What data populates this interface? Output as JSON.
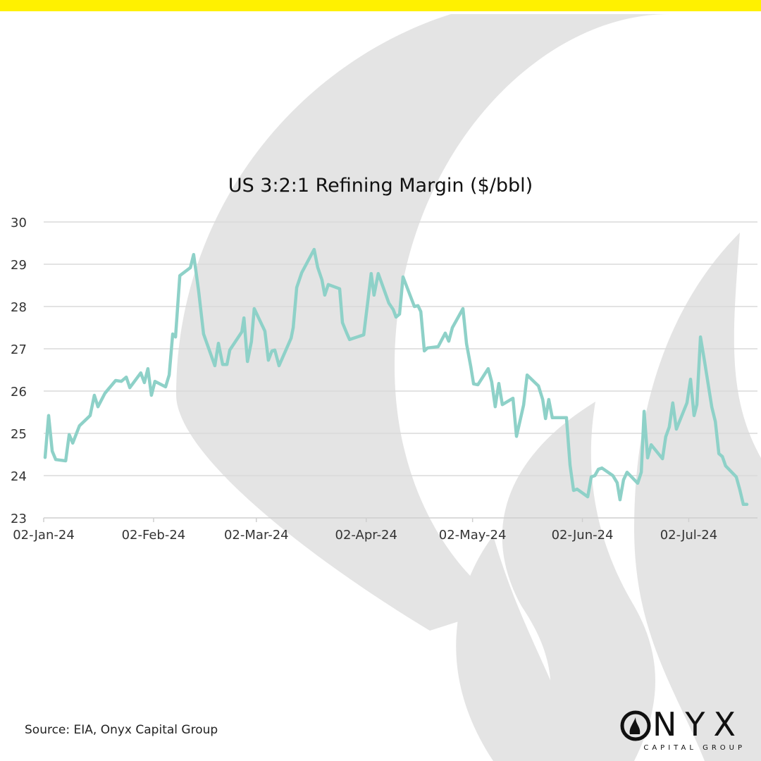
{
  "colors": {
    "accent_bar": "#FFF100",
    "line": "#8ED1C8",
    "watermark": "#E4E4E4",
    "grid": "#DADADA"
  },
  "source": "Source: EIA, Onyx Capital Group",
  "logo": {
    "word": "ONYX",
    "sub": "CAPITAL GROUP"
  },
  "chart_data": {
    "type": "line",
    "title": "US 3:2:1 Refining Margin ($/bbl)",
    "xlabel": "",
    "ylabel": "",
    "x_unit": "days since 02-Jan-24",
    "ylim": [
      23,
      30
    ],
    "yticks": [
      23,
      24,
      25,
      26,
      27,
      28,
      29,
      30
    ],
    "xlim": [
      0,
      199
    ],
    "xticks": [
      {
        "day": 0,
        "label": "02-Jan-24"
      },
      {
        "day": 31,
        "label": "02-Feb-24"
      },
      {
        "day": 60,
        "label": "02-Mar-24"
      },
      {
        "day": 91,
        "label": "02-Apr-24"
      },
      {
        "day": 121,
        "label": "02-May-24"
      },
      {
        "day": 152,
        "label": "02-Jun-24"
      },
      {
        "day": 182,
        "label": "02-Jul-24"
      }
    ],
    "grid": true,
    "series": [
      {
        "name": "US 3:2:1 Refining Margin",
        "x": [
          0.4,
          1.4,
          2.4,
          3.4,
          6.2,
          7.2,
          8.2,
          10.1,
          13.1,
          14.3,
          15.3,
          17.3,
          20.3,
          21.9,
          23.3,
          24.3,
          27.4,
          28.4,
          29.4,
          30.4,
          31.4,
          34.4,
          35.4,
          36.4,
          37.2,
          38.4,
          41.4,
          42.3,
          43.7,
          45.1,
          48.3,
          49.3,
          50.5,
          51.7,
          52.5,
          55.9,
          56.5,
          57.5,
          58.6,
          59.4,
          62.4,
          63.4,
          64.4,
          65.2,
          66.4,
          69.8,
          70.4,
          71.4,
          72.8,
          76.3,
          77.3,
          78.5,
          79.3,
          80.3,
          83.5,
          84.3,
          85.5,
          86.3,
          90.3,
          92.4,
          93.2,
          94.4,
          97.4,
          98.6,
          99.4,
          100.4,
          101.4,
          104.6,
          105.6,
          106.4,
          107.4,
          108.3,
          111.3,
          113.3,
          114.3,
          115.3,
          118.3,
          119.3,
          120.5,
          121.3,
          122.5,
          125.4,
          126.4,
          127.4,
          128.4,
          129.4,
          132.4,
          133.4,
          135.4,
          136.4,
          139.6,
          140.8,
          141.6,
          142.5,
          143.5,
          147.5,
          148.5,
          149.5,
          150.5,
          153.5,
          154.5,
          155.5,
          156.5,
          157.5,
          160.6,
          161.8,
          162.6,
          163.6,
          164.6,
          167.6,
          168.6,
          169.4,
          170.4,
          171.4,
          174.6,
          175.5,
          176.5,
          177.5,
          178.5,
          181.5,
          182.5,
          183.5,
          184.3,
          185.3,
          186.5,
          188.5,
          189.5,
          190.5,
          191.5,
          192.4,
          195.4,
          196.4,
          197.4,
          198.4
        ],
        "y": [
          24.43,
          25.42,
          24.58,
          24.38,
          24.35,
          24.97,
          24.77,
          25.18,
          25.42,
          25.9,
          25.63,
          25.95,
          26.25,
          26.23,
          26.33,
          26.08,
          26.43,
          26.2,
          26.53,
          25.9,
          26.23,
          26.1,
          26.38,
          27.35,
          27.28,
          28.73,
          28.92,
          29.23,
          28.38,
          27.35,
          26.6,
          27.13,
          26.63,
          26.63,
          26.97,
          27.4,
          27.73,
          26.7,
          27.17,
          27.95,
          27.42,
          26.73,
          26.95,
          26.97,
          26.6,
          27.25,
          27.5,
          28.45,
          28.8,
          29.35,
          28.93,
          28.63,
          28.27,
          28.52,
          28.42,
          27.62,
          27.37,
          27.22,
          27.33,
          28.78,
          28.27,
          28.78,
          28.08,
          27.93,
          27.75,
          27.82,
          28.7,
          28.0,
          28.02,
          27.88,
          26.95,
          27.02,
          27.05,
          27.37,
          27.18,
          27.5,
          27.95,
          27.12,
          26.58,
          26.17,
          26.15,
          26.53,
          26.22,
          25.63,
          26.18,
          25.68,
          25.83,
          24.93,
          25.67,
          26.38,
          26.12,
          25.8,
          25.35,
          25.8,
          25.37,
          25.37,
          24.25,
          23.65,
          23.68,
          23.5,
          23.97,
          24.0,
          24.15,
          24.18,
          24.0,
          23.83,
          23.43,
          23.9,
          24.08,
          23.82,
          24.08,
          25.52,
          24.42,
          24.73,
          24.4,
          24.92,
          25.15,
          25.72,
          25.1,
          25.72,
          26.28,
          25.42,
          25.68,
          27.28,
          26.68,
          25.62,
          25.28,
          24.52,
          24.45,
          24.23,
          23.97,
          23.67,
          23.32,
          23.32
        ]
      }
    ]
  }
}
